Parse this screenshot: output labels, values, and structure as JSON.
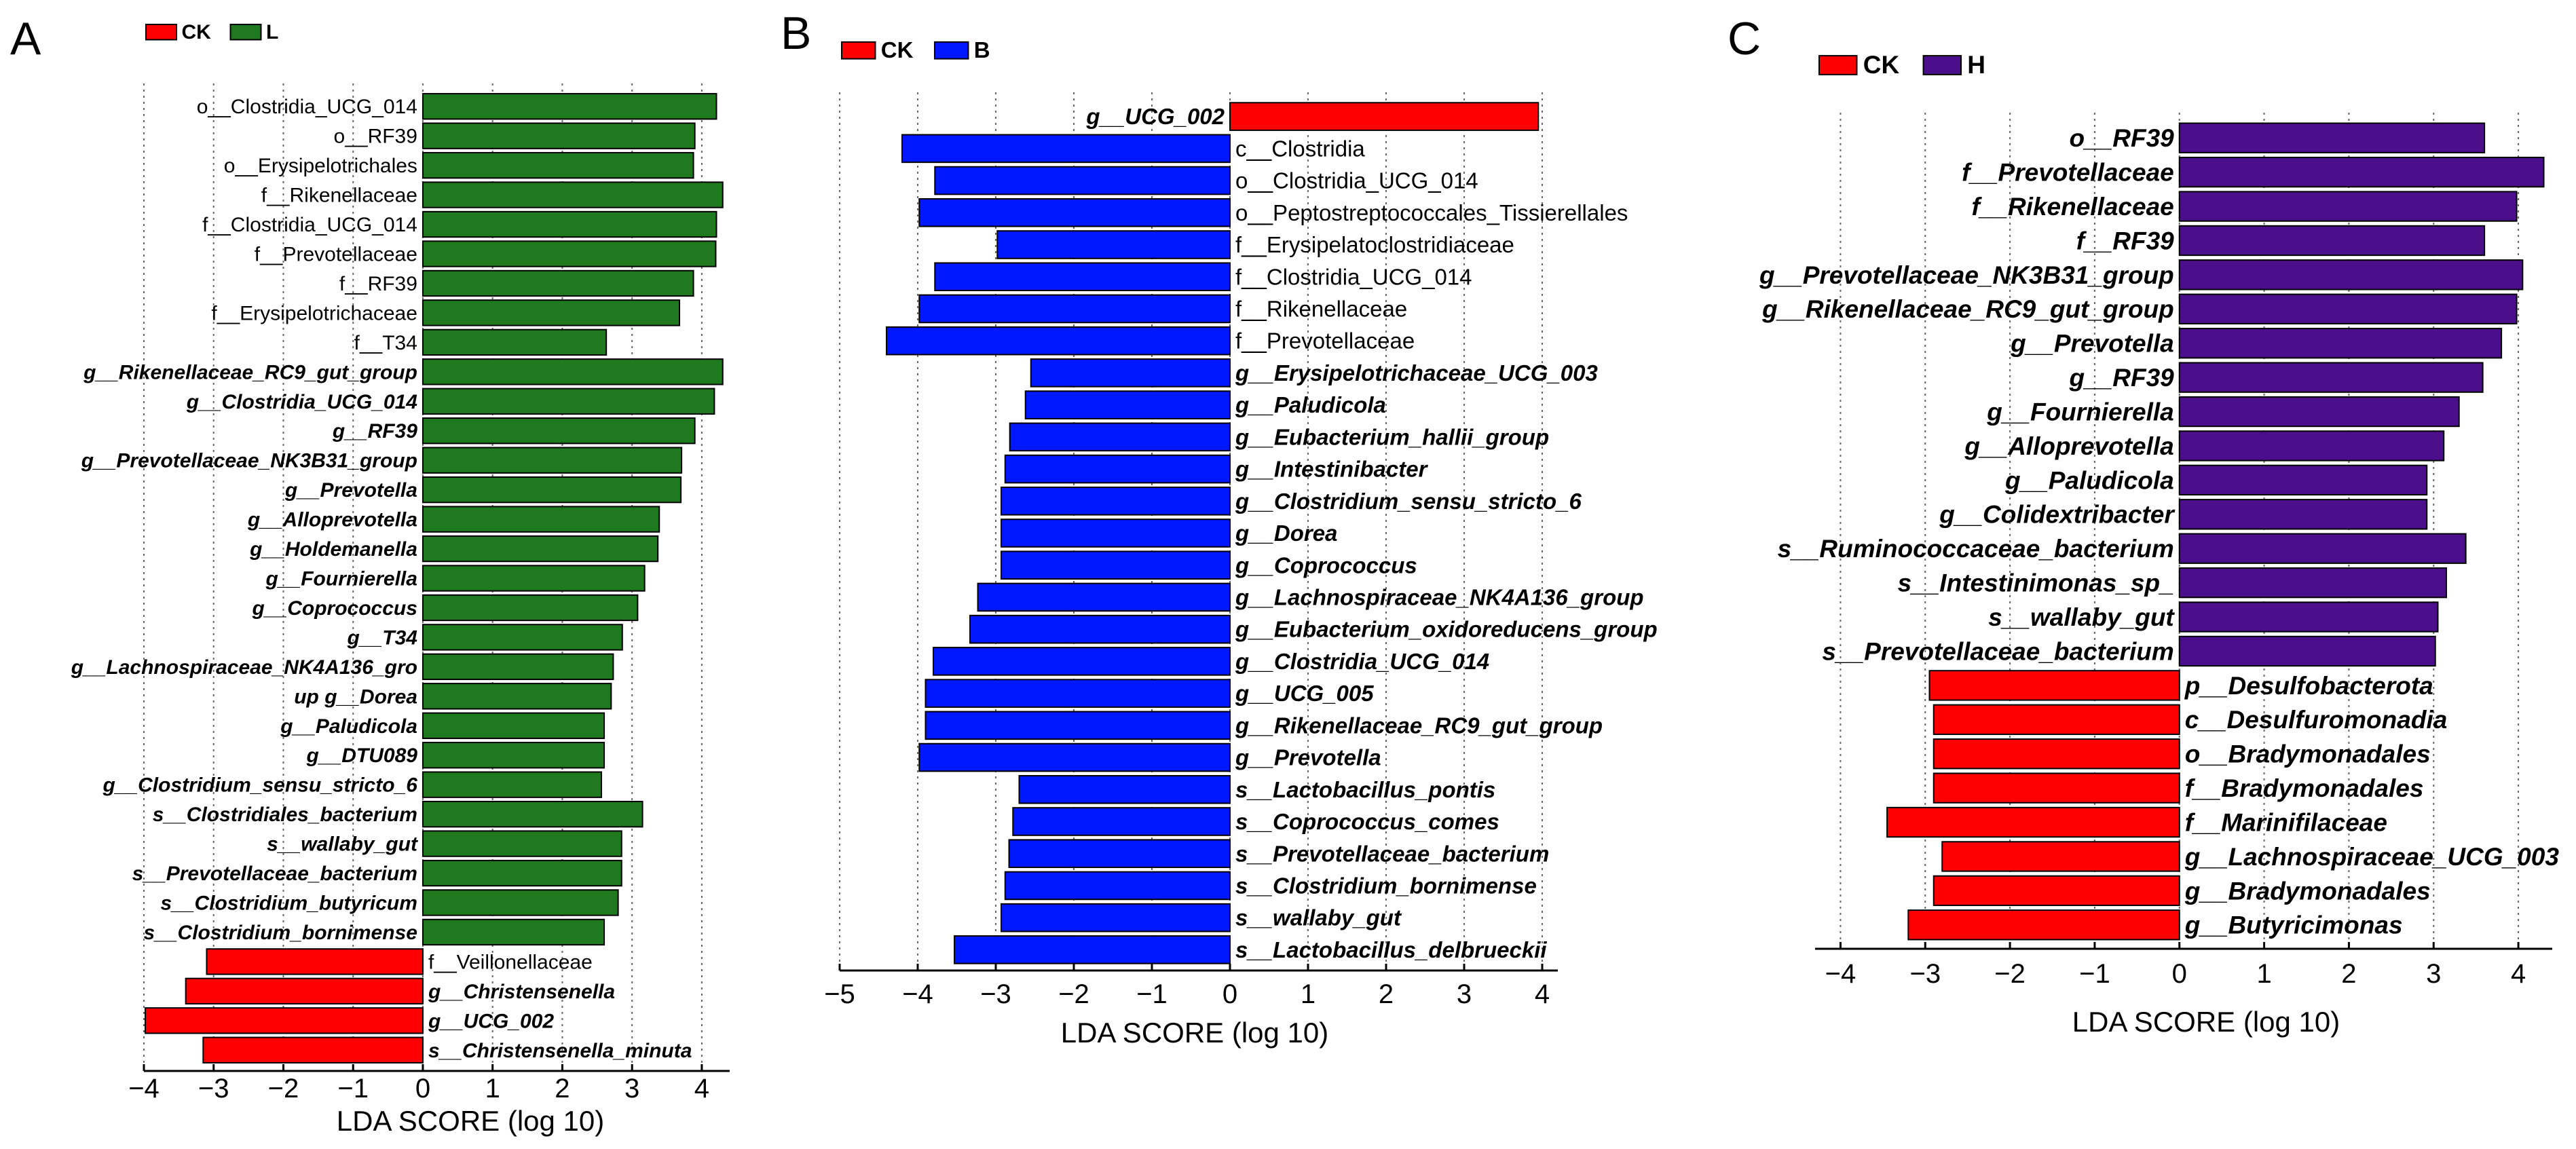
{
  "colors": {
    "CK": "#ff0000",
    "L": "#1f7a1f",
    "B": "#0018ff",
    "H": "#4b0f8c"
  },
  "chart_data": [
    {
      "panel": "A",
      "type": "bar",
      "orientation": "horizontal",
      "legend": [
        {
          "name": "CK",
          "color": "#ff0000"
        },
        {
          "name": "L",
          "color": "#1f7a1f"
        }
      ],
      "xlabel": "LDA SCORE (log 10)",
      "xlim": [
        -4,
        4.4
      ],
      "xticks": [
        -4,
        -3,
        -2,
        -1,
        0,
        1,
        2,
        3,
        4
      ],
      "xtick_labels": [
        "−4",
        "−3",
        "−2",
        "−1",
        "0",
        "1",
        "2",
        "3",
        "4"
      ],
      "series": [
        {
          "name": "L",
          "categories": [
            "o__Clostridia_UCG_014",
            "o__RF39",
            "o__Erysipelotrichales",
            "f__Rikenellaceae",
            "f__Clostridia_UCG_014",
            "f__Prevotellaceae",
            "f__RF39",
            "f__Erysipelotrichaceae",
            "f__T34",
            "g__Rikenellaceae_RC9_gut_group",
            "g__Clostridia_UCG_014",
            "g__RF39",
            "g__Prevotellaceae_NK3B31_group",
            "g__Prevotella",
            "g__Alloprevotella",
            "g__Holdemanella",
            "g__Fournierella",
            "g__Coprococcus",
            "g__T34",
            "g__Lachnospiraceae_NK4A136_gro",
            "up g__Dorea",
            "g__Paludicola",
            "g__DTU089",
            "g__Clostridium_sensu_stricto_6",
            "s__Clostridiales_bacterium",
            "s__wallaby_gut",
            "s__Prevotellaceae_bacterium",
            "s__Clostridium_butyricum",
            "s__Clostridium_bornimense"
          ],
          "values": [
            4.21,
            3.9,
            3.88,
            4.3,
            4.21,
            4.2,
            3.88,
            3.68,
            2.63,
            4.3,
            4.18,
            3.9,
            3.71,
            3.7,
            3.39,
            3.37,
            3.18,
            3.08,
            2.86,
            2.73,
            2.7,
            2.6,
            2.6,
            2.56,
            3.15,
            2.85,
            2.85,
            2.8,
            2.6
          ]
        },
        {
          "name": "CK",
          "categories": [
            "f__Veillonellaceae",
            "g__Christensenella",
            "g__UCG_002",
            "s__Christensenella_minuta"
          ],
          "values": [
            -3.1,
            -3.4,
            -3.98,
            -3.15
          ]
        }
      ]
    },
    {
      "panel": "B",
      "type": "bar",
      "orientation": "horizontal",
      "legend": [
        {
          "name": "CK",
          "color": "#ff0000"
        },
        {
          "name": "B",
          "color": "#0018ff"
        }
      ],
      "xlabel": "LDA SCORE (log 10)",
      "xlim": [
        -5,
        4.2
      ],
      "xticks": [
        -5,
        -4,
        -3,
        -2,
        -1,
        0,
        1,
        2,
        3,
        4
      ],
      "xtick_labels": [
        "−5",
        "−4",
        "−3",
        "−2",
        "−1",
        "0",
        "1",
        "2",
        "3",
        "4"
      ],
      "series": [
        {
          "name": "CK",
          "categories": [
            "g__UCG_002"
          ],
          "values": [
            3.95
          ]
        },
        {
          "name": "B",
          "categories": [
            "c__Clostridia",
            "o__Clostridia_UCG_014",
            "o__Peptostreptococcales_Tissierellales",
            "f__Erysipelatoclostridiaceae",
            "f__Clostridia_UCG_014",
            "f__Rikenellaceae",
            "f__Prevotellaceae",
            "g__Erysipelotrichaceae_UCG_003",
            "g__Paludicola",
            "g__Eubacterium_hallii_group",
            "g__Intestinibacter",
            "g__Clostridium_sensu_stricto_6",
            "g__Dorea",
            "g__Coprococcus",
            "g__Lachnospiraceae_NK4A136_group",
            "g__Eubacterium_oxidoreducens_group",
            "g__Clostridia_UCG_014",
            "g__UCG_005",
            "g__Rikenellaceae_RC9_gut_group",
            "g__Prevotella",
            "s__Lactobacillus_pontis",
            "s__Coprococcus_comes",
            "s__Prevotellaceae_bacterium",
            "s__Clostridium_bornimense",
            "s__wallaby_gut",
            "s__Lactobacillus_delbrueckii"
          ],
          "values": [
            -4.2,
            -3.78,
            -3.98,
            -2.98,
            -3.78,
            -3.98,
            -4.4,
            -2.55,
            -2.62,
            -2.82,
            -2.88,
            -2.93,
            -2.93,
            -2.93,
            -3.23,
            -3.33,
            -3.8,
            -3.9,
            -3.9,
            -3.98,
            -2.7,
            -2.78,
            -2.83,
            -2.88,
            -2.93,
            -3.53
          ]
        }
      ]
    },
    {
      "panel": "C",
      "type": "bar",
      "orientation": "horizontal",
      "legend": [
        {
          "name": "CK",
          "color": "#ff0000"
        },
        {
          "name": "H",
          "color": "#4b0f8c"
        }
      ],
      "xlabel": "LDA SCORE (log 10)",
      "xlim": [
        -4.3,
        4.4
      ],
      "xticks": [
        -4,
        -3,
        -2,
        -1,
        0,
        1,
        2,
        3,
        4
      ],
      "xtick_labels": [
        "−4",
        "−3",
        "−2",
        "−1",
        "0",
        "1",
        "2",
        "3",
        "4"
      ],
      "series": [
        {
          "name": "H",
          "categories": [
            "o__RF39",
            "f__Prevotellaceae",
            "f__Rikenellaceae",
            "f__RF39",
            "g__Prevotellaceae_NK3B31_group",
            "g__Rikenellaceae_RC9_gut_group",
            "g__Prevotella",
            "g__RF39",
            "g__Fournierella",
            "g__Alloprevotella",
            "g__Paludicola",
            "g__Colidextribacter",
            "s__Ruminococcaceae_bacterium",
            "s__Intestinimonas_sp_",
            "s__wallaby_gut",
            "s__Prevotellaceae_bacterium"
          ],
          "values": [
            3.6,
            4.3,
            3.98,
            3.6,
            4.05,
            3.98,
            3.8,
            3.58,
            3.3,
            3.12,
            2.92,
            2.92,
            3.38,
            3.15,
            3.05,
            3.02
          ]
        },
        {
          "name": "CK",
          "categories": [
            "p__Desulfobacterota",
            "c__Desulfuromonadia",
            "o__Bradymonadales",
            "f__Bradymonadales",
            "f__Marinifilaceae",
            "g__Lachnospiraceae_UCG_003",
            "g__Bradymonadales",
            "g__Butyricimonas"
          ],
          "values": [
            -2.95,
            -2.9,
            -2.9,
            -2.9,
            -3.45,
            -2.8,
            -2.9,
            -3.2
          ]
        }
      ]
    }
  ]
}
